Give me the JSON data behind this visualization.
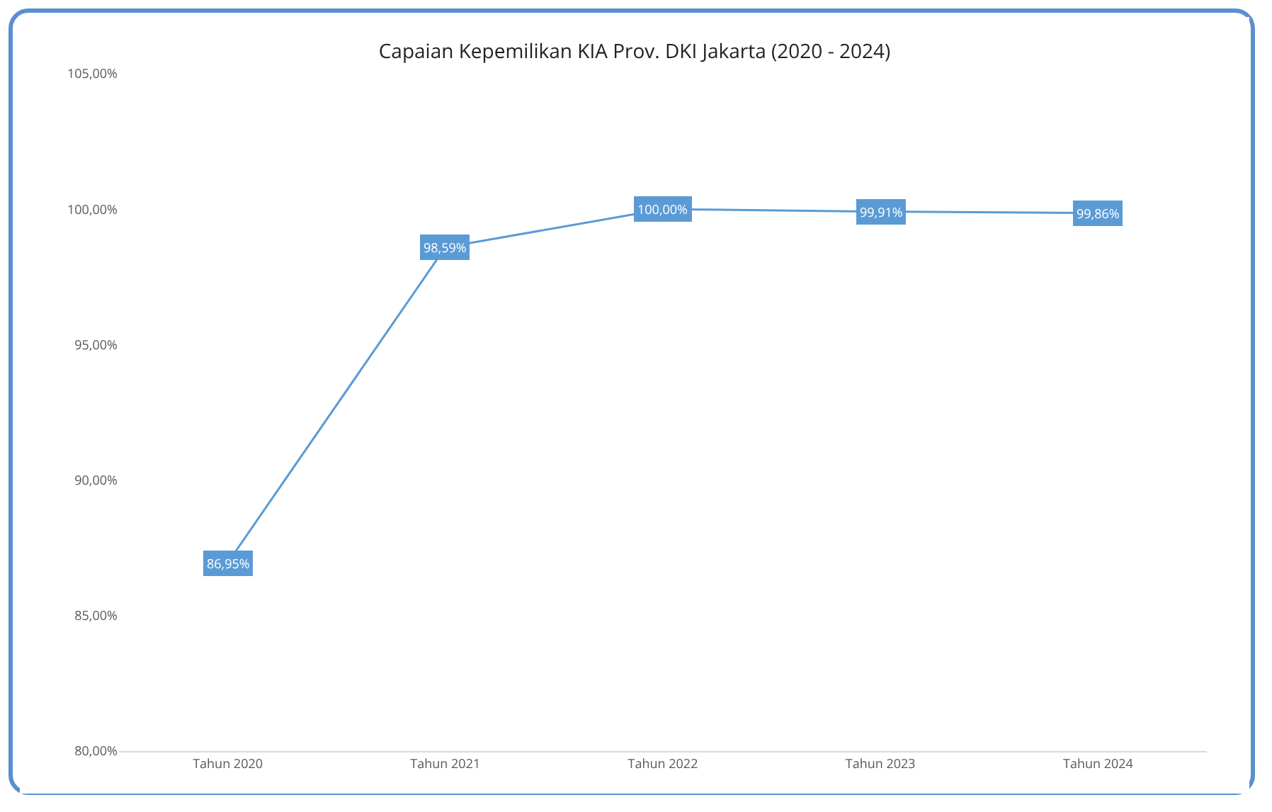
{
  "chart_data": {
    "type": "line",
    "title": "Capaian Kepemilikan KIA Prov. DKI Jakarta (2020 - 2024)",
    "categories": [
      "Tahun 2020",
      "Tahun 2021",
      "Tahun 2022",
      "Tahun 2023",
      "Tahun 2024"
    ],
    "series": [
      {
        "color": "#5b9bd5",
        "values": [
          86.95,
          98.59,
          100.0,
          99.91,
          99.86
        ],
        "value_labels": [
          "86,95%",
          "98,59%",
          "100,00%",
          "99,91%",
          "99,86%"
        ]
      }
    ],
    "ylim": [
      80,
      105
    ],
    "yticks": [
      {
        "value": 80,
        "label": "80,00%"
      },
      {
        "value": 85,
        "label": "85,00%"
      },
      {
        "value": 90,
        "label": "90,00%"
      },
      {
        "value": 95,
        "label": "95,00%"
      },
      {
        "value": 100,
        "label": "100,00%"
      },
      {
        "value": 105,
        "label": "105,00%"
      }
    ],
    "grid": false,
    "legend": false,
    "marker": "square",
    "line_style": "solid"
  }
}
